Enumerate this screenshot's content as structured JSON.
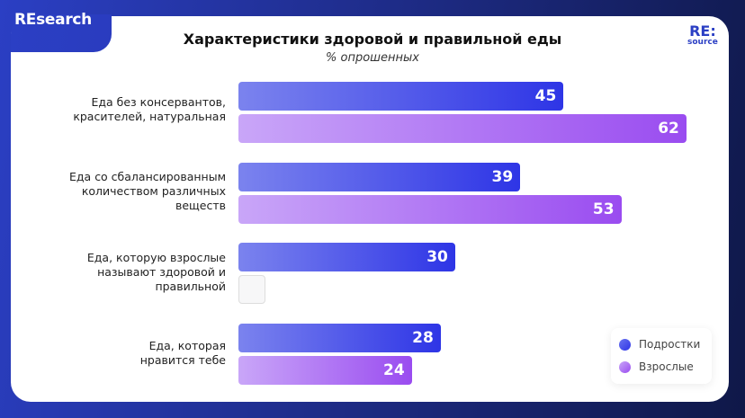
{
  "brand": {
    "tab": "REsearch",
    "logo_top": "RE:",
    "logo_bottom": "source"
  },
  "colors": {
    "teens": "#2e35e6",
    "adults": "#9a4cf0"
  },
  "chart_data": {
    "type": "bar",
    "orientation": "horizontal",
    "title": "Характеристики здоровой и правильной еды",
    "subtitle": "% опрошенных",
    "categories": [
      "Еда без консервантов, красителей, натуральная",
      "Еда со сбалансированным количеством различных веществ",
      "Еда, которую взрослые называют здоровой и правильной",
      "Еда, которая нравится тебе"
    ],
    "series": [
      {
        "name": "Подростки",
        "values": [
          45,
          39,
          30,
          28
        ]
      },
      {
        "name": "Взрослые",
        "values": [
          62,
          53,
          null,
          24
        ]
      }
    ],
    "legend": "bottom-right",
    "grid": false
  }
}
